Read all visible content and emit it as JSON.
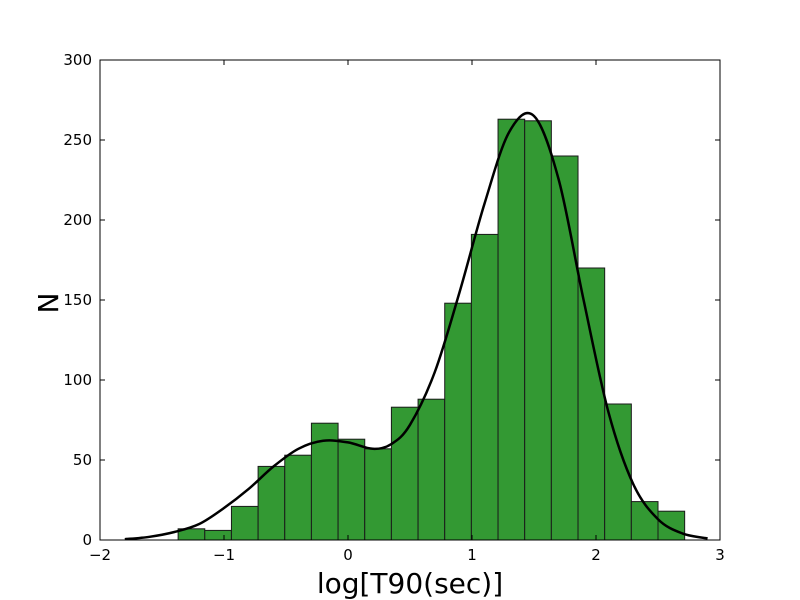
{
  "chart_data": {
    "type": "bar",
    "xlabel": "log[T90(sec)]",
    "ylabel": "N",
    "xlim": [
      -2,
      3
    ],
    "ylim": [
      0,
      300
    ],
    "x_ticks": [
      -2,
      -1,
      0,
      1,
      2,
      3
    ],
    "x_tick_labels": [
      "−2",
      "−1",
      "0",
      "1",
      "2",
      "3"
    ],
    "y_ticks": [
      0,
      50,
      100,
      150,
      200,
      250,
      300
    ],
    "y_tick_labels": [
      "0",
      "50",
      "100",
      "150",
      "200",
      "250",
      "300"
    ],
    "grid": false,
    "bar_color": "#339933",
    "curve_color": "#000000",
    "bins": [
      {
        "x0": -1.37,
        "x1": -1.155,
        "count": 7
      },
      {
        "x0": -1.155,
        "x1": -0.94,
        "count": 6
      },
      {
        "x0": -0.94,
        "x1": -0.725,
        "count": 21
      },
      {
        "x0": -0.725,
        "x1": -0.51,
        "count": 46
      },
      {
        "x0": -0.51,
        "x1": -0.295,
        "count": 53
      },
      {
        "x0": -0.295,
        "x1": -0.08,
        "count": 73
      },
      {
        "x0": -0.08,
        "x1": 0.135,
        "count": 63
      },
      {
        "x0": 0.135,
        "x1": 0.35,
        "count": 57
      },
      {
        "x0": 0.35,
        "x1": 0.565,
        "count": 83
      },
      {
        "x0": 0.565,
        "x1": 0.78,
        "count": 88
      },
      {
        "x0": 0.78,
        "x1": 0.995,
        "count": 148
      },
      {
        "x0": 0.995,
        "x1": 1.21,
        "count": 191
      },
      {
        "x0": 1.21,
        "x1": 1.425,
        "count": 263
      },
      {
        "x0": 1.425,
        "x1": 1.64,
        "count": 262
      },
      {
        "x0": 1.64,
        "x1": 1.855,
        "count": 240
      },
      {
        "x0": 1.855,
        "x1": 2.07,
        "count": 170
      },
      {
        "x0": 2.07,
        "x1": 2.285,
        "count": 85
      },
      {
        "x0": 2.285,
        "x1": 2.5,
        "count": 24
      },
      {
        "x0": 2.5,
        "x1": 2.715,
        "count": 18
      }
    ],
    "fit_curve": {
      "x": [
        -1.8,
        -1.6,
        -1.4,
        -1.2,
        -1.0,
        -0.8,
        -0.6,
        -0.4,
        -0.2,
        0.0,
        0.2,
        0.35,
        0.5,
        0.7,
        0.9,
        1.1,
        1.3,
        1.5,
        1.7,
        1.9,
        2.1,
        2.3,
        2.5,
        2.7,
        2.9
      ],
      "y": [
        0.5,
        2,
        5,
        10,
        20,
        32,
        46,
        57,
        62,
        61,
        57,
        60,
        72,
        105,
        155,
        210,
        255,
        265,
        225,
        150,
        80,
        35,
        13,
        4,
        1
      ]
    }
  }
}
